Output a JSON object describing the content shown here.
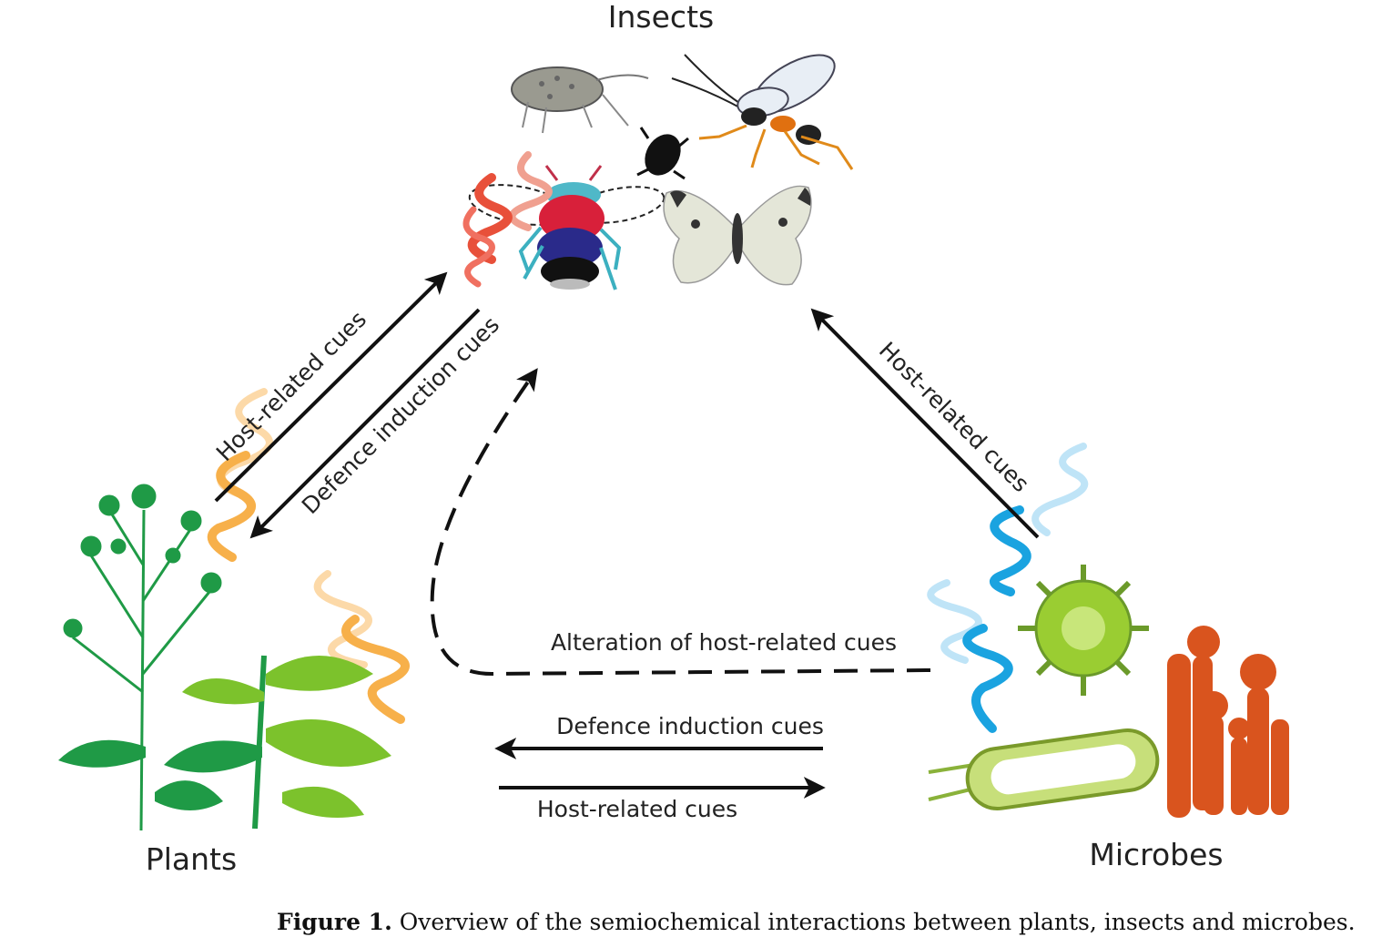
{
  "nodes": {
    "insects": "Insects",
    "plants": "Plants",
    "microbes": "Microbes"
  },
  "edges": {
    "plants_to_insects": "Host-related cues",
    "insects_to_plants": "Defence induction cues",
    "microbes_to_insects": "Host-related cues",
    "microbes_alteration": "Alteration of host-related cues",
    "microbes_to_plants": "Defence induction cues",
    "plants_to_microbes": "Host-related cues"
  },
  "caption": {
    "label": "Figure 1.",
    "text": "Overview of the semiochemical interactions between plants, insects and microbes."
  },
  "colors": {
    "arrow": "#111111",
    "plant_volatiles": "#f7b04a",
    "insect_volatiles": "#e8503a",
    "microbe_volatiles": "#1aa3e0",
    "plant_green": "#1f9a46",
    "plant_lightgreen": "#7cc22c",
    "microbe_orange": "#d9541e",
    "microbe_green": "#9acd32"
  }
}
